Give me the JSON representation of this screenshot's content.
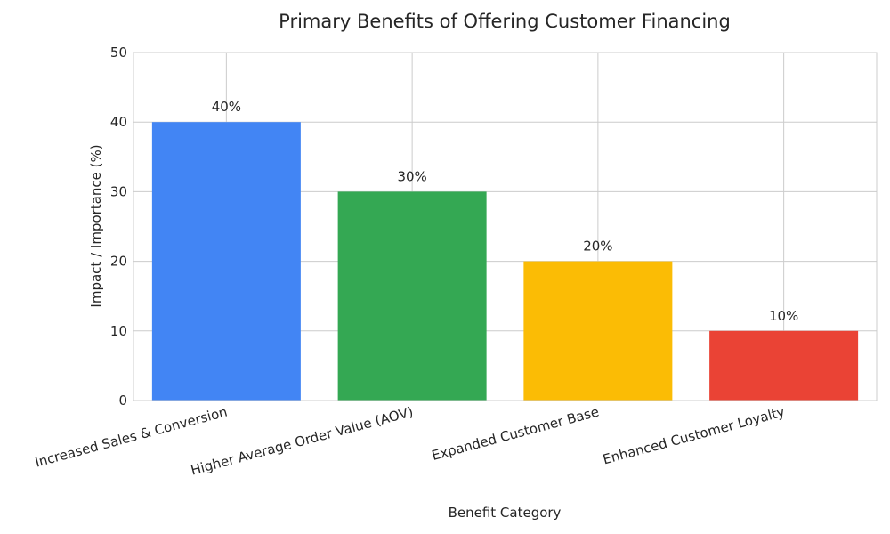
{
  "chart_data": {
    "type": "bar",
    "title": "Primary Benefits of Offering Customer Financing",
    "xlabel": "Benefit Category",
    "ylabel": "Impact / Importance (%)",
    "categories": [
      "Increased Sales & Conversion",
      "Higher Average Order Value (AOV)",
      "Expanded Customer Base",
      "Enhanced Customer Loyalty"
    ],
    "values": [
      40,
      30,
      20,
      10
    ],
    "value_labels": [
      "40%",
      "30%",
      "20%",
      "10%"
    ],
    "colors": [
      "#4285f4",
      "#34a853",
      "#fbbc05",
      "#ea4335"
    ],
    "ylim": [
      0,
      50
    ],
    "yticks": [
      0,
      10,
      20,
      30,
      40,
      50
    ],
    "grid": true,
    "legend": "none"
  }
}
